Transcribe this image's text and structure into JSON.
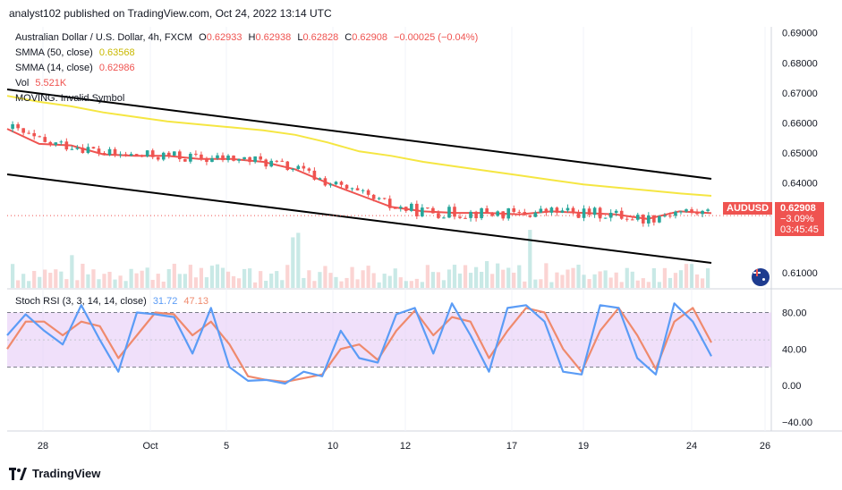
{
  "header": {
    "published": "analyst102 published on TradingView.com, Oct 24, 2022 13:14 UTC"
  },
  "legend": {
    "symbol": "Australian Dollar / U.S. Dollar, 4h, FXCM",
    "open_label": "O",
    "open": "0.62933",
    "high_label": "H",
    "high": "0.62938",
    "low_label": "L",
    "low": "0.62828",
    "close_label": "C",
    "close": "0.62908",
    "change": "−0.00025 (−0.04%)",
    "smma50_label": "SMMA (50, close)",
    "smma50_value": "0.63568",
    "smma14_label": "SMMA (14, close)",
    "smma14_value": "0.62986",
    "vol_label": "Vol",
    "vol_value": "5.521K",
    "moving_label": "MOVING: Invalid Symbol",
    "stoch_label": "Stoch RSI (3, 3, 14, 14, close)",
    "stoch_k": "31.72",
    "stoch_d": "47.13"
  },
  "price_tags": {
    "symbol_tag": "AUDUSD",
    "price": "0.62908",
    "pct": "−3.09%",
    "countdown": "03:45:45"
  },
  "footer": {
    "brand": "TradingView"
  },
  "colors": {
    "up": "#26a69a",
    "down": "#ef5350",
    "smma50": "#f5e642",
    "smma14": "#ef5350",
    "stoch_k": "#5b9cf6",
    "stoch_d": "#ef8a6d",
    "stoch_band": "#e6ccf7",
    "channel": "#000000"
  },
  "chart_data": [
    {
      "type": "candlestick",
      "title": "Australian Dollar / U.S. Dollar, 4h, FXCM",
      "y_ticks": [
        "0.69000",
        "0.68000",
        "0.67000",
        "0.66000",
        "0.65000",
        "0.64000",
        "0.61000"
      ],
      "ylim": [
        0.605,
        0.692
      ],
      "x_ticks": [
        "28",
        "Oct",
        "5",
        "10",
        "12",
        "17",
        "19",
        "24",
        "26"
      ],
      "series": [
        {
          "name": "SMMA (50, close)",
          "values": [
            0.669,
            0.667,
            0.6655,
            0.6635,
            0.662,
            0.6605,
            0.6595,
            0.6585,
            0.6575,
            0.656,
            0.6535,
            0.6505,
            0.649,
            0.647,
            0.6455,
            0.644,
            0.6425,
            0.641,
            0.6395,
            0.6385,
            0.6375,
            0.6365,
            0.6357
          ]
        },
        {
          "name": "SMMA (14, close)",
          "values": [
            0.658,
            0.653,
            0.6525,
            0.6495,
            0.649,
            0.649,
            0.648,
            0.648,
            0.647,
            0.6445,
            0.64,
            0.636,
            0.632,
            0.6305,
            0.63,
            0.63,
            0.6295,
            0.6305,
            0.63,
            0.6295,
            0.628,
            0.6305,
            0.6299
          ]
        }
      ],
      "channel": {
        "upper": [
          [
            0,
            0.67
          ],
          [
            1,
            0.64
          ]
        ],
        "lower": [
          [
            0,
            0.642
          ],
          [
            1,
            0.61
          ]
        ]
      },
      "last_price": 0.62908
    },
    {
      "type": "line",
      "title": "Stoch RSI (3, 3, 14, 14, close)",
      "y_ticks": [
        "80.00",
        "40.00",
        "0.00",
        "−40.00"
      ],
      "ylim": [
        -50,
        105
      ],
      "band": [
        20,
        80
      ],
      "series": [
        {
          "name": "K",
          "values": [
            55,
            78,
            60,
            45,
            88,
            50,
            15,
            80,
            78,
            75,
            35,
            85,
            20,
            5,
            6,
            2,
            15,
            10,
            60,
            30,
            25,
            78,
            85,
            35,
            90,
            55,
            15,
            85,
            88,
            70,
            15,
            12,
            88,
            85,
            30,
            12,
            90,
            70,
            32
          ]
        },
        {
          "name": "D",
          "values": [
            40,
            70,
            70,
            55,
            70,
            65,
            30,
            55,
            80,
            78,
            55,
            70,
            45,
            10,
            6,
            4,
            8,
            12,
            40,
            45,
            28,
            60,
            82,
            55,
            75,
            70,
            30,
            60,
            85,
            80,
            40,
            15,
            60,
            85,
            55,
            18,
            70,
            85,
            47
          ]
        }
      ]
    }
  ]
}
